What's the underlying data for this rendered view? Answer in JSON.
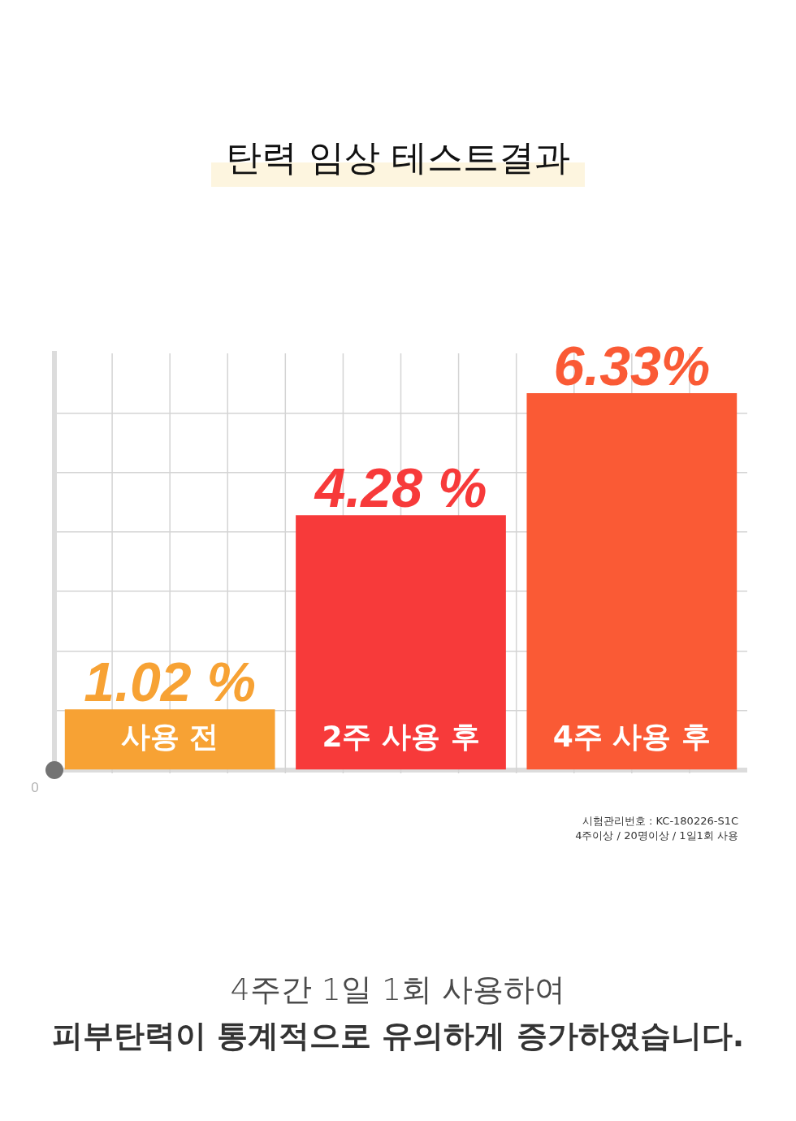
{
  "chart_data": {
    "type": "bar",
    "title": "탄력 임상 테스트결과",
    "categories": [
      "사용 전",
      "2주 사용 후",
      "4주 사용 후"
    ],
    "values": [
      1.02,
      4.28,
      6.33
    ],
    "colors": [
      "#f7a234",
      "#f73a3a",
      "#fa5a35"
    ],
    "value_labels": [
      "1.02 %",
      "4.28 %",
      "6.33%"
    ],
    "ylim": [
      0,
      7
    ],
    "yticks": [
      {
        "value": 0,
        "label": null
      },
      {
        "value": 1,
        "label": null
      },
      {
        "value": 2,
        "label": null
      },
      {
        "value": 3,
        "label": null
      },
      {
        "value": 4,
        "label": null
      },
      {
        "value": 5,
        "label": null
      },
      {
        "value": 6,
        "label": null
      }
    ],
    "grid": true,
    "annotations": [
      "0",
      "시험관리번호 : KC-180226-S1C",
      "4주이상 / 20명이상 / 1일1회 사용",
      "4주간 1일 1회 사용하여",
      "피부탄력이 통계적으로 유의하게 증가하였습니다."
    ]
  }
}
